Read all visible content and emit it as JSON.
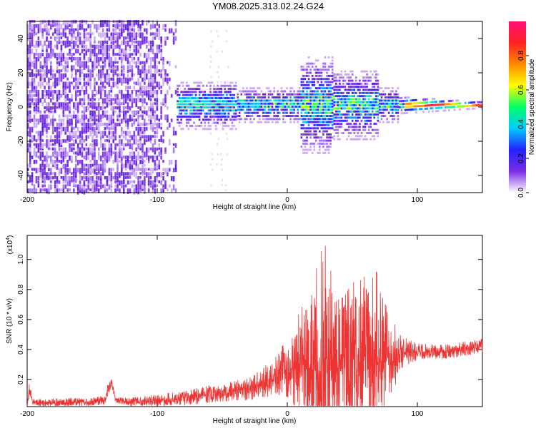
{
  "title": "YM08.2025.313.02.24.G24",
  "colors": {
    "signal": "#ee3333",
    "spectrogram_main": "#7a2ee6",
    "spectrogram_light": "#c9a7f5",
    "axis": "#000000"
  },
  "chart_data": [
    {
      "type": "heatmap",
      "name": "spectrogram",
      "xlabel": "Height of straight line (km)",
      "ylabel": "Frequency (Hz)",
      "xlim": [
        -200,
        150
      ],
      "ylim": [
        -50,
        50
      ],
      "xticks": [
        -200,
        -100,
        0,
        100
      ],
      "xtick_labels": [
        "-200",
        "-100",
        "0",
        "100"
      ],
      "yticks": [
        -40,
        -20,
        0,
        20,
        40
      ],
      "ytick_labels": [
        "-40",
        "-20",
        "0",
        "20",
        "40"
      ],
      "colorbar": {
        "label": "Normalized spectral amplitude",
        "range": [
          0,
          1
        ],
        "ticks": [
          0.0,
          0.2,
          0.4,
          0.6,
          0.8
        ],
        "tick_labels": [
          "0.0",
          "0.2",
          "0.4",
          "0.6",
          "0.8"
        ],
        "stops": [
          "#ffffff",
          "#7a2ee6",
          "#2222ff",
          "#00ccff",
          "#00ff66",
          "#ffff00",
          "#ff8800",
          "#ff2222",
          "#ff1177"
        ]
      },
      "noise_region_km": [
        -200,
        -85
      ],
      "signal_band_km": [
        -85,
        150
      ],
      "peak_band_center_hz": 0
    },
    {
      "type": "line",
      "name": "snr",
      "xlabel": "Height of straight line (km)",
      "ylabel": "SNR (10 * v/v)",
      "scale_label": "(x10",
      "scale_exponent": "4",
      "scale_close": ")",
      "xlim": [
        -200,
        150
      ],
      "ylim": [
        0.02,
        1.16
      ],
      "xticks": [
        -200,
        -100,
        0,
        100
      ],
      "xtick_labels": [
        "-200",
        "-100",
        "0",
        "100"
      ],
      "yticks": [
        0.2,
        0.4,
        0.6,
        0.8,
        1.0
      ],
      "ytick_labels": [
        "0.2",
        "0.4",
        "0.6",
        "0.8",
        "1.0"
      ],
      "envelope": {
        "x": [
          -200,
          -198,
          -196,
          -190,
          -150,
          -140,
          -138,
          -135,
          -132,
          -120,
          -100,
          -80,
          -60,
          -40,
          -20,
          -10,
          0,
          10,
          20,
          25,
          30,
          35,
          40,
          45,
          50,
          55,
          60,
          65,
          70,
          75,
          80,
          85,
          90,
          100,
          120,
          150
        ],
        "base": [
          0.03,
          0.14,
          0.05,
          0.04,
          0.05,
          0.06,
          0.13,
          0.18,
          0.06,
          0.05,
          0.06,
          0.07,
          0.1,
          0.12,
          0.16,
          0.22,
          0.26,
          0.3,
          0.3,
          0.32,
          0.3,
          0.3,
          0.3,
          0.32,
          0.3,
          0.3,
          0.34,
          0.34,
          0.32,
          0.34,
          0.34,
          0.36,
          0.38,
          0.38,
          0.38,
          0.42
        ],
        "amp": [
          0.02,
          0.06,
          0.02,
          0.03,
          0.03,
          0.03,
          0.04,
          0.03,
          0.02,
          0.03,
          0.04,
          0.05,
          0.06,
          0.07,
          0.1,
          0.14,
          0.2,
          0.36,
          0.55,
          0.72,
          0.8,
          0.55,
          0.42,
          0.45,
          0.55,
          0.55,
          0.55,
          0.62,
          0.58,
          0.45,
          0.26,
          0.18,
          0.1,
          0.06,
          0.05,
          0.05
        ]
      }
    }
  ]
}
